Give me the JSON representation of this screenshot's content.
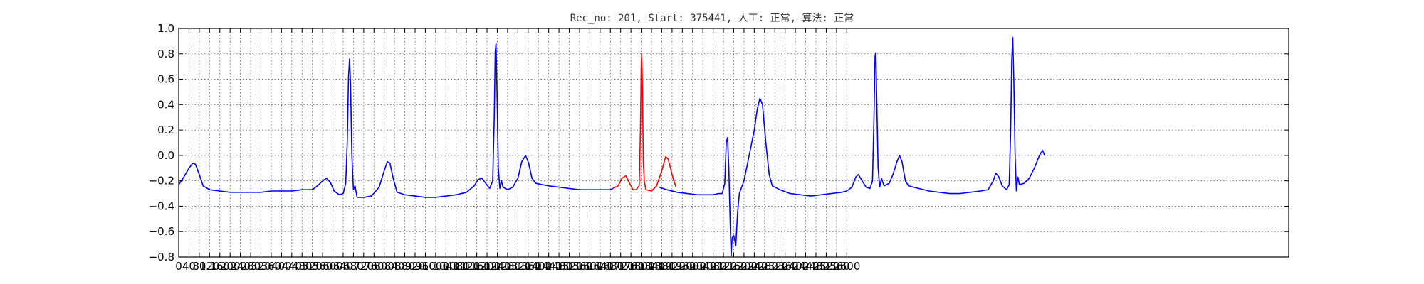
{
  "chart_data": {
    "type": "line",
    "title": "Rec_no: 201, Start: 375441, 人工: 正常, 算法: 正常",
    "xlabel": "",
    "ylabel": "",
    "xlim": [
      0,
      4320
    ],
    "ylim": [
      -0.8,
      1.0
    ],
    "grid": true,
    "yticks": [
      -0.8,
      -0.6,
      -0.4,
      -0.2,
      0.0,
      0.2,
      0.4,
      0.6,
      0.8,
      1.0
    ],
    "ytick_labels": [
      "−0.8",
      "−0.6",
      "−0.4",
      "−0.2",
      "0.0",
      "0.2",
      "0.4",
      "0.6",
      "0.8",
      "1.0"
    ],
    "xticks": [
      0,
      40,
      80,
      120,
      160,
      200,
      240,
      280,
      320,
      360,
      400,
      440,
      480,
      520,
      560,
      600,
      640,
      680,
      720,
      760,
      800,
      840,
      880,
      920,
      960,
      1000,
      1040,
      1080,
      1120,
      1160,
      1200,
      1240,
      1280,
      1320,
      1360,
      1400,
      1440,
      1480,
      1520,
      1560,
      1600,
      1640,
      1680,
      1720,
      1760,
      1800,
      1840,
      1880,
      1920,
      1960,
      2000,
      2040,
      2080,
      2120,
      2160,
      2200,
      2240,
      2280,
      2320,
      2360,
      2400,
      2440,
      2480,
      2520,
      2560,
      2600
    ],
    "xtick_labels": [
      "0",
      "40",
      "80",
      "120",
      "160",
      "200",
      "240",
      "280",
      "320",
      "360",
      "400",
      "440",
      "480",
      "520",
      "560",
      "600",
      "640",
      "680",
      "720",
      "760",
      "800",
      "840",
      "880",
      "920",
      "960",
      "1000",
      "1040",
      "1080",
      "1120",
      "1160",
      "1200",
      "1240",
      "1280",
      "1320",
      "1360",
      "1400",
      "1440",
      "1480",
      "1520",
      "1560",
      "1600",
      "1640",
      "1680",
      "1720",
      "1760",
      "1800",
      "1840",
      "1880",
      "1920",
      "1960",
      "2000",
      "2040",
      "2080",
      "2120",
      "2160",
      "2200",
      "2240",
      "2280",
      "2320",
      "2360",
      "2400",
      "2440",
      "2480",
      "2520",
      "2560",
      "2600"
    ],
    "series": [
      {
        "color": "#0000ff",
        "segments": [
          [
            [
              0,
              -0.23
            ],
            [
              20,
              -0.17
            ],
            [
              40,
              -0.1
            ],
            [
              55,
              -0.06
            ],
            [
              65,
              -0.07
            ],
            [
              80,
              -0.15
            ],
            [
              95,
              -0.24
            ],
            [
              120,
              -0.27
            ],
            [
              160,
              -0.28
            ],
            [
              200,
              -0.29
            ],
            [
              240,
              -0.29
            ],
            [
              280,
              -0.29
            ],
            [
              320,
              -0.29
            ],
            [
              360,
              -0.28
            ],
            [
              400,
              -0.28
            ],
            [
              440,
              -0.28
            ],
            [
              480,
              -0.27
            ],
            [
              520,
              -0.27
            ],
            [
              540,
              -0.24
            ],
            [
              560,
              -0.2
            ],
            [
              575,
              -0.18
            ],
            [
              590,
              -0.21
            ],
            [
              605,
              -0.28
            ],
            [
              625,
              -0.31
            ],
            [
              640,
              -0.3
            ],
            [
              650,
              -0.22
            ],
            [
              656,
              0.1
            ],
            [
              661,
              0.62
            ],
            [
              665,
              0.76
            ],
            [
              669,
              0.55
            ],
            [
              674,
              0.0
            ],
            [
              680,
              -0.27
            ],
            [
              686,
              -0.24
            ],
            [
              694,
              -0.33
            ],
            [
              720,
              -0.33
            ],
            [
              750,
              -0.32
            ],
            [
              780,
              -0.25
            ],
            [
              800,
              -0.12
            ],
            [
              812,
              -0.05
            ],
            [
              822,
              -0.06
            ],
            [
              835,
              -0.18
            ],
            [
              850,
              -0.29
            ],
            [
              880,
              -0.31
            ],
            [
              920,
              -0.32
            ],
            [
              960,
              -0.33
            ],
            [
              1000,
              -0.33
            ],
            [
              1040,
              -0.32
            ],
            [
              1080,
              -0.31
            ],
            [
              1120,
              -0.29
            ],
            [
              1150,
              -0.24
            ],
            [
              1165,
              -0.19
            ],
            [
              1180,
              -0.18
            ],
            [
              1195,
              -0.22
            ],
            [
              1210,
              -0.26
            ],
            [
              1222,
              -0.2
            ],
            [
              1228,
              0.3
            ],
            [
              1232,
              0.82
            ],
            [
              1235,
              0.88
            ],
            [
              1239,
              0.5
            ],
            [
              1244,
              -0.1
            ],
            [
              1250,
              -0.26
            ],
            [
              1256,
              -0.2
            ],
            [
              1262,
              -0.25
            ],
            [
              1280,
              -0.27
            ],
            [
              1300,
              -0.25
            ],
            [
              1320,
              -0.18
            ],
            [
              1335,
              -0.05
            ],
            [
              1350,
              0.0
            ],
            [
              1362,
              -0.06
            ],
            [
              1375,
              -0.18
            ],
            [
              1390,
              -0.22
            ],
            [
              1440,
              -0.24
            ],
            [
              1480,
              -0.25
            ],
            [
              1520,
              -0.26
            ],
            [
              1560,
              -0.27
            ],
            [
              1600,
              -0.27
            ],
            [
              1640,
              -0.27
            ],
            [
              1680,
              -0.27
            ],
            [
              1690,
              -0.26
            ]
          ],
          [
            [
              1870,
              -0.25
            ],
            [
              1900,
              -0.27
            ],
            [
              1940,
              -0.29
            ],
            [
              1980,
              -0.3
            ],
            [
              2020,
              -0.31
            ],
            [
              2060,
              -0.31
            ],
            [
              2080,
              -0.31
            ],
            [
              2100,
              -0.3
            ],
            [
              2115,
              -0.3
            ],
            [
              2125,
              -0.22
            ],
            [
              2131,
              0.1
            ],
            [
              2136,
              0.14
            ],
            [
              2141,
              -0.1
            ],
            [
              2146,
              -0.5
            ],
            [
              2150,
              -0.79
            ],
            [
              2154,
              -0.65
            ],
            [
              2160,
              -0.63
            ],
            [
              2168,
              -0.71
            ],
            [
              2175,
              -0.45
            ],
            [
              2182,
              -0.3
            ],
            [
              2200,
              -0.2
            ],
            [
              2220,
              0.0
            ],
            [
              2240,
              0.2
            ],
            [
              2252,
              0.37
            ],
            [
              2262,
              0.45
            ],
            [
              2272,
              0.4
            ],
            [
              2285,
              0.1
            ],
            [
              2298,
              -0.15
            ],
            [
              2310,
              -0.24
            ],
            [
              2340,
              -0.27
            ],
            [
              2380,
              -0.3
            ],
            [
              2420,
              -0.31
            ],
            [
              2460,
              -0.32
            ],
            [
              2500,
              -0.31
            ],
            [
              2540,
              -0.3
            ],
            [
              2580,
              -0.29
            ],
            [
              2600,
              -0.28
            ],
            [
              2620,
              -0.25
            ],
            [
              2635,
              -0.17
            ],
            [
              2645,
              -0.15
            ],
            [
              2660,
              -0.2
            ],
            [
              2675,
              -0.25
            ],
            [
              2690,
              -0.26
            ],
            [
              2700,
              -0.2
            ],
            [
              2706,
              0.3
            ],
            [
              2710,
              0.78
            ],
            [
              2713,
              0.81
            ],
            [
              2717,
              0.4
            ],
            [
              2722,
              -0.1
            ],
            [
              2728,
              -0.25
            ],
            [
              2735,
              -0.18
            ],
            [
              2745,
              -0.24
            ],
            [
              2765,
              -0.22
            ],
            [
              2780,
              -0.15
            ],
            [
              2795,
              -0.05
            ],
            [
              2805,
              0.0
            ],
            [
              2815,
              -0.05
            ],
            [
              2828,
              -0.2
            ],
            [
              2840,
              -0.24
            ],
            [
              2880,
              -0.26
            ],
            [
              2920,
              -0.28
            ],
            [
              2960,
              -0.29
            ],
            [
              3000,
              -0.3
            ],
            [
              3040,
              -0.3
            ],
            [
              3080,
              -0.29
            ],
            [
              3120,
              -0.28
            ],
            [
              3150,
              -0.27
            ],
            [
              3170,
              -0.2
            ],
            [
              3180,
              -0.14
            ],
            [
              3192,
              -0.17
            ],
            [
              3205,
              -0.24
            ],
            [
              3222,
              -0.27
            ],
            [
              3232,
              -0.23
            ],
            [
              3238,
              0.2
            ],
            [
              3242,
              0.75
            ],
            [
              3246,
              0.93
            ],
            [
              3250,
              0.6
            ],
            [
              3255,
              0.0
            ],
            [
              3260,
              -0.28
            ],
            [
              3266,
              -0.17
            ],
            [
              3272,
              -0.23
            ],
            [
              3290,
              -0.22
            ],
            [
              3310,
              -0.18
            ],
            [
              3330,
              -0.1
            ],
            [
              3350,
              0.0
            ],
            [
              3362,
              0.04
            ],
            [
              3370,
              0.0
            ]
          ]
        ]
      },
      {
        "color": "#ff0000",
        "segments": [
          [
            [
              1690,
              -0.26
            ],
            [
              1710,
              -0.24
            ],
            [
              1725,
              -0.18
            ],
            [
              1740,
              -0.16
            ],
            [
              1755,
              -0.22
            ],
            [
              1768,
              -0.27
            ],
            [
              1780,
              -0.27
            ],
            [
              1792,
              -0.24
            ],
            [
              1797,
              0.2
            ],
            [
              1800,
              0.7
            ],
            [
              1802,
              0.8
            ],
            [
              1805,
              0.5
            ],
            [
              1808,
              -0.05
            ],
            [
              1812,
              -0.2
            ],
            [
              1818,
              -0.27
            ],
            [
              1840,
              -0.28
            ],
            [
              1860,
              -0.24
            ],
            [
              1880,
              -0.12
            ],
            [
              1895,
              -0.01
            ],
            [
              1905,
              -0.03
            ],
            [
              1920,
              -0.15
            ],
            [
              1935,
              -0.25
            ]
          ]
        ]
      }
    ]
  }
}
